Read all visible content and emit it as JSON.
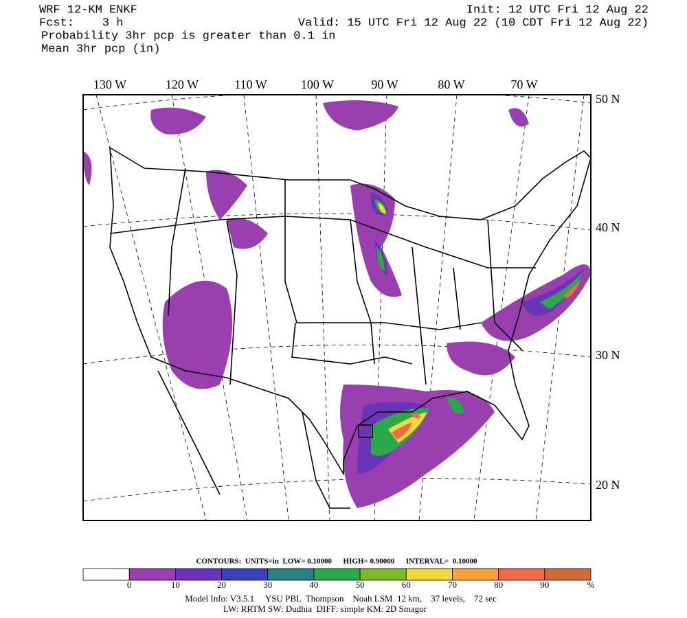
{
  "header": {
    "model": "WRF 12-KM ENKF",
    "init": "Init: 12 UTC Fri 12 Aug 22",
    "forecast": "Fcst:    3 h",
    "valid": "Valid: 15 UTC Fri 12 Aug 22 (10 CDT Fri 12 Aug 22)",
    "field_1": "Probability 3hr pcp is greater than 0.1 in",
    "field_2": "Mean 3hr pcp (in)"
  },
  "map": {
    "lon_labels": [
      "130 W",
      "120 W",
      "110 W",
      "100 W",
      "90 W",
      "80 W",
      "70 W"
    ],
    "lat_labels": [
      "50 N",
      "40 N",
      "30 N",
      "20 N"
    ]
  },
  "colorbar": {
    "contours": "CONTOURS:  UNITS=in  LOW= 0.10000      HIGH= 0.90000      INTERVAL=  0.10000",
    "colors": [
      "#ffffff",
      "#9a3fb0",
      "#6a34b8",
      "#3b3fb8",
      "#2e8080",
      "#2aa84a",
      "#7fb82a",
      "#f3d83a",
      "#f5a33a",
      "#f06a4a",
      "#d06a3a"
    ],
    "labels": [
      "0",
      "10",
      "20",
      "30",
      "40",
      "50",
      "60",
      "70",
      "80",
      "90",
      "%"
    ]
  },
  "footer": {
    "line_1": "Model Info: V3.5.1     YSU PBL  Thompson    Noah LSM  12 km,    37 levels,    72 sec",
    "line_2": "LW: RRTM SW: Dudhia  DIFF: simple KM: 2D Smagor"
  }
}
